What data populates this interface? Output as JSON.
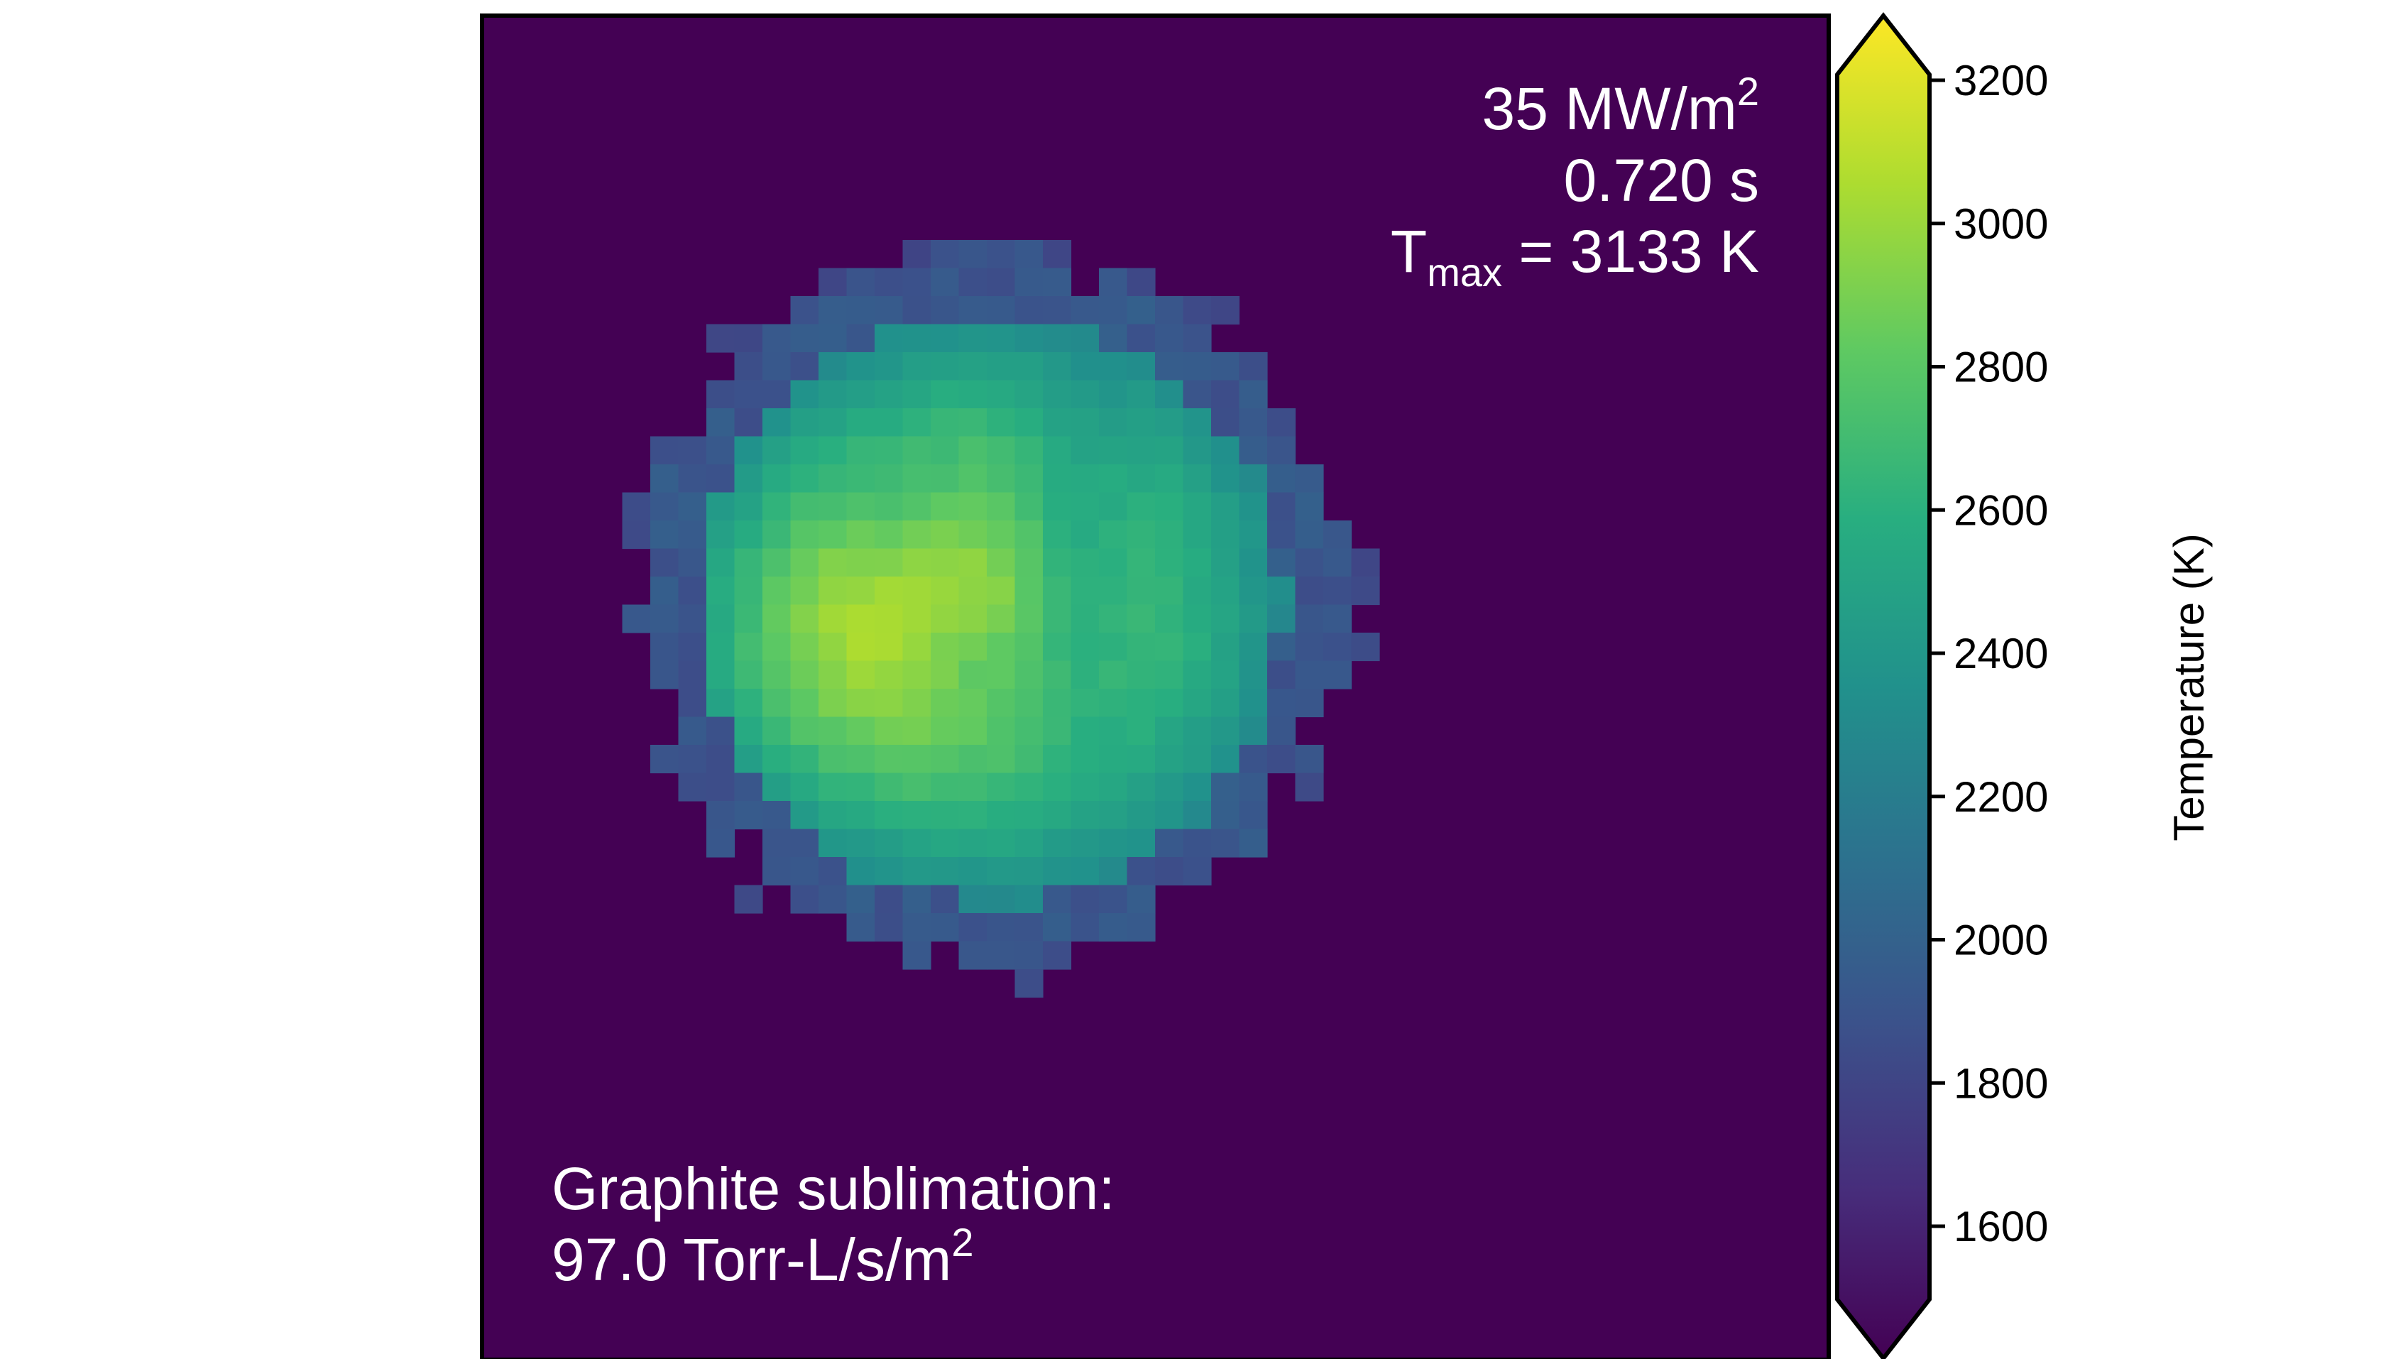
{
  "annotations": {
    "flux_value": "35 MW/m",
    "flux_exp": "2",
    "time": "0.720 s",
    "tmax_symbol": "T",
    "tmax_sub": "max",
    "tmax_value": " = 3133 K",
    "sublimation_label": "Graphite sublimation:",
    "sublimation_value": "97.0 Torr-L/s/m",
    "sublimation_exp": "2"
  },
  "colorbar": {
    "label": "Temperature (K)",
    "ticks": [
      "1600",
      "1800",
      "2000",
      "2200",
      "2400",
      "2600",
      "2800",
      "3000",
      "3200"
    ],
    "colormap": "viridis",
    "extend": "both",
    "range": [
      1600,
      3200
    ]
  },
  "chart_data": {
    "type": "heatmap",
    "colormap": "viridis",
    "vmin": 1600,
    "vmax": 3200,
    "background_value": 1600,
    "tmax": 3133,
    "flux_MW_per_m2": 35,
    "time_s": 0.72,
    "sublimation_rate_torr_L_per_s_per_m2": 97.0,
    "hot_spot": "circular hot spot in upper-left region of the field",
    "peak_temperature_K": 3133,
    "rim_temperature_K": 1950,
    "cool_dark_spots_K": 2750,
    "axes_ticks_visible": false,
    "grid": false,
    "colorbar_label": "Temperature (K)",
    "colorbar_ticks": [
      1600,
      1800,
      2000,
      2200,
      2400,
      2600,
      2800,
      3000,
      3200
    ]
  },
  "colors": {
    "background": "#440154",
    "frame": "#000000",
    "annotation_text": "#ffffff",
    "tick_text": "#000000"
  }
}
